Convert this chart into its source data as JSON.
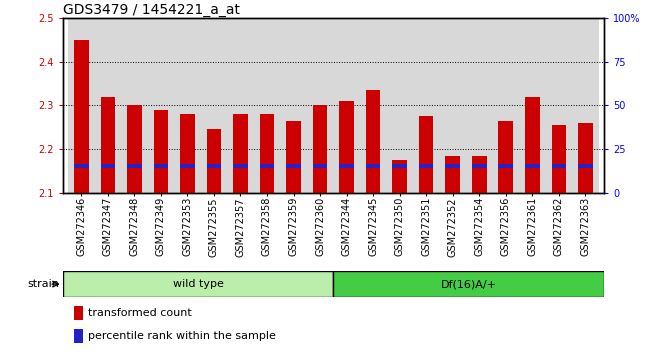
{
  "title": "GDS3479 / 1454221_a_at",
  "samples": [
    "GSM272346",
    "GSM272347",
    "GSM272348",
    "GSM272349",
    "GSM272353",
    "GSM272355",
    "GSM272357",
    "GSM272358",
    "GSM272359",
    "GSM272360",
    "GSM272344",
    "GSM272345",
    "GSM272350",
    "GSM272351",
    "GSM272352",
    "GSM272354",
    "GSM272356",
    "GSM272361",
    "GSM272362",
    "GSM272363"
  ],
  "red_values": [
    2.45,
    2.32,
    2.3,
    2.29,
    2.28,
    2.245,
    2.28,
    2.28,
    2.265,
    2.3,
    2.31,
    2.335,
    2.175,
    2.275,
    2.185,
    2.185,
    2.265,
    2.32,
    2.255,
    2.26
  ],
  "blue_values": [
    2.162,
    2.162,
    2.162,
    2.162,
    2.162,
    2.162,
    2.162,
    2.162,
    2.162,
    2.162,
    2.162,
    2.162,
    2.162,
    2.162,
    2.162,
    2.162,
    2.162,
    2.162,
    2.162,
    2.162
  ],
  "ylim_left": [
    2.1,
    2.5
  ],
  "ylim_right": [
    0,
    100
  ],
  "right_ticks": [
    0,
    25,
    50,
    75,
    100
  ],
  "right_tick_labels": [
    "0",
    "25",
    "50",
    "75",
    "100%"
  ],
  "left_ticks": [
    2.1,
    2.2,
    2.3,
    2.4,
    2.5
  ],
  "wild_type_count": 10,
  "df16_count": 10,
  "wild_type_label": "wild type",
  "df16_label": "Df(16)A/+",
  "strain_label": "strain",
  "legend_red": "transformed count",
  "legend_blue": "percentile rank within the sample",
  "bar_width": 0.55,
  "red_color": "#cc0000",
  "blue_color": "#2222cc",
  "col_bg_color": "#d8d8d8",
  "wt_bg": "#bbeeaa",
  "df_bg": "#44cc44",
  "title_fontsize": 10,
  "tick_fontsize": 7,
  "label_fontsize": 8
}
